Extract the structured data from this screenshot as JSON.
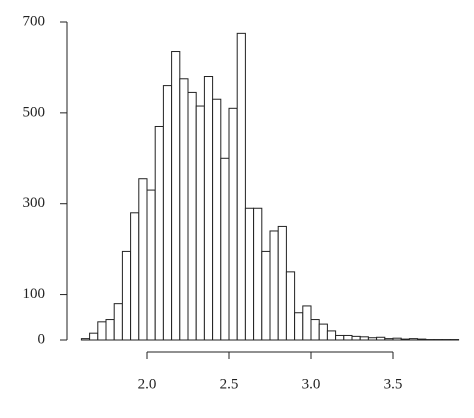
{
  "chart_data": {
    "type": "histogram",
    "bins": [
      1.6,
      1.65,
      1.7,
      1.75,
      1.8,
      1.85,
      1.9,
      1.95,
      2.0,
      2.05,
      2.1,
      2.15,
      2.2,
      2.25,
      2.3,
      2.35,
      2.4,
      2.45,
      2.5,
      2.55,
      2.6,
      2.65,
      2.7,
      2.75,
      2.8,
      2.85,
      2.9,
      2.95,
      3.0,
      3.05,
      3.1,
      3.15,
      3.2,
      3.25,
      3.3,
      3.35,
      3.4,
      3.45,
      3.5,
      3.55,
      3.6,
      3.65,
      3.7,
      3.75,
      3.8,
      3.85,
      3.9
    ],
    "counts": [
      3,
      15,
      40,
      45,
      80,
      195,
      280,
      355,
      330,
      470,
      560,
      635,
      575,
      545,
      515,
      580,
      530,
      400,
      510,
      675,
      290,
      290,
      195,
      240,
      250,
      150,
      60,
      75,
      45,
      35,
      20,
      10,
      10,
      8,
      7,
      5,
      6,
      3,
      4,
      2,
      3,
      2,
      1,
      1,
      1,
      1
    ],
    "color": "#ffffff",
    "xlim": [
      1.6,
      3.9
    ],
    "xticks": [
      {
        "value": 2.0,
        "label": "2.0"
      },
      2.5,
      {
        "value": 3.0,
        "label": "3.0"
      },
      3.5
    ],
    "ylim": [
      0,
      700
    ],
    "yticks": [
      0,
      100,
      300,
      500,
      700
    ]
  }
}
